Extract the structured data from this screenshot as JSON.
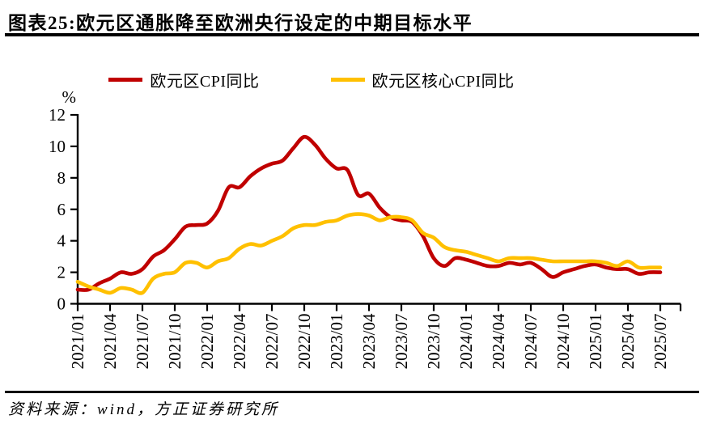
{
  "header": {
    "title": "图表25:欧元区通胀降至欧洲央行设定的中期目标水平"
  },
  "footer": {
    "source": "资料来源：wind，方正证券研究所"
  },
  "chart_data": {
    "type": "line",
    "title": "图表25:欧元区通胀降至欧洲央行设定的中期目标水平",
    "xlabel": "",
    "ylabel": "%",
    "ylim": [
      0,
      12
    ],
    "ytick_step": 2,
    "ytick_labels": [
      "0",
      "2",
      "4",
      "6",
      "8",
      "10",
      "12"
    ],
    "grid": false,
    "legend_position": "top",
    "x_frequency": "monthly",
    "x_start": "2021/01",
    "x_end": "2025/07",
    "x_tick_interval_months": 3,
    "x_tick_labels": [
      "2021/01",
      "2021/04",
      "2021/07",
      "2021/10",
      "2022/01",
      "2022/04",
      "2022/07",
      "2022/10",
      "2023/01",
      "2023/04",
      "2023/07",
      "2023/10",
      "2024/01",
      "2024/04",
      "2024/07",
      "2024/10",
      "2025/01",
      "2025/04",
      "2025/07"
    ],
    "series": [
      {
        "name": "欧元区CPI同比",
        "color": "#C00000",
        "values": [
          0.9,
          0.9,
          1.3,
          1.6,
          2.0,
          1.9,
          2.2,
          3.0,
          3.4,
          4.1,
          4.9,
          5.0,
          5.1,
          5.9,
          7.4,
          7.4,
          8.1,
          8.6,
          8.9,
          9.1,
          9.9,
          10.6,
          10.1,
          9.2,
          8.6,
          8.5,
          6.9,
          7.0,
          6.1,
          5.5,
          5.3,
          5.2,
          4.3,
          2.9,
          2.4,
          2.9,
          2.8,
          2.6,
          2.4,
          2.4,
          2.6,
          2.5,
          2.6,
          2.2,
          1.7,
          2.0,
          2.2,
          2.4,
          2.5,
          2.3,
          2.2,
          2.2,
          1.9,
          2.0,
          2.0
        ]
      },
      {
        "name": "欧元区核心CPI同比",
        "color": "#FFC000",
        "values": [
          1.4,
          1.1,
          0.9,
          0.7,
          1.0,
          0.9,
          0.7,
          1.6,
          1.9,
          2.0,
          2.6,
          2.6,
          2.3,
          2.7,
          2.9,
          3.5,
          3.8,
          3.7,
          4.0,
          4.3,
          4.8,
          5.0,
          5.0,
          5.2,
          5.3,
          5.6,
          5.7,
          5.6,
          5.3,
          5.5,
          5.5,
          5.3,
          4.5,
          4.2,
          3.6,
          3.4,
          3.3,
          3.1,
          2.9,
          2.7,
          2.9,
          2.9,
          2.9,
          2.8,
          2.7,
          2.7,
          2.7,
          2.7,
          2.7,
          2.6,
          2.4,
          2.7,
          2.3,
          2.3,
          2.3
        ]
      }
    ]
  }
}
